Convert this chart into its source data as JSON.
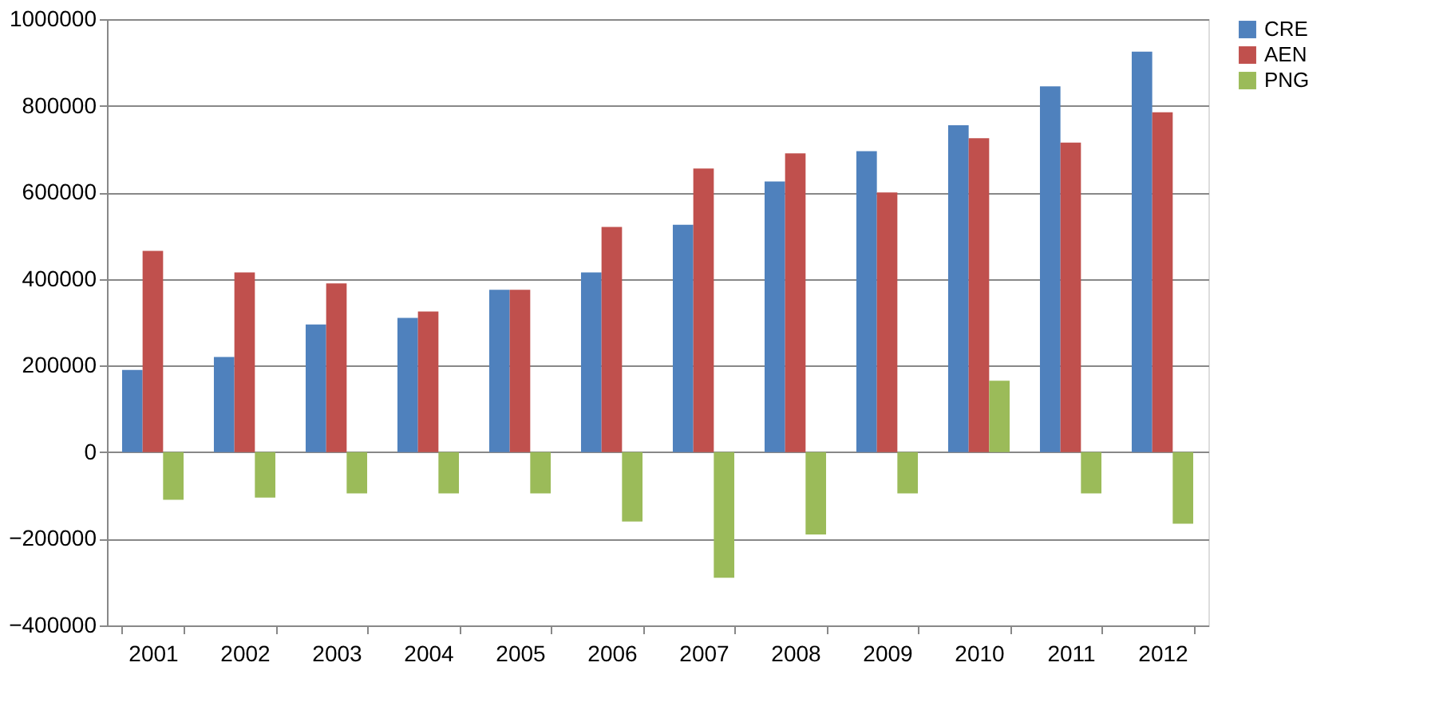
{
  "chart_data": {
    "type": "bar",
    "categories": [
      "2001",
      "2002",
      "2003",
      "2004",
      "2005",
      "2006",
      "2007",
      "2008",
      "2009",
      "2010",
      "2011",
      "2012"
    ],
    "series": [
      {
        "name": "CRE",
        "color": "#4f81bd",
        "values": [
          190000,
          220000,
          295000,
          310000,
          375000,
          415000,
          525000,
          625000,
          695000,
          755000,
          845000,
          925000
        ]
      },
      {
        "name": "AEN",
        "color": "#c0504d",
        "values": [
          465000,
          415000,
          390000,
          325000,
          375000,
          520000,
          655000,
          690000,
          600000,
          725000,
          715000,
          785000
        ]
      },
      {
        "name": "PNG",
        "color": "#9bbb59",
        "values": [
          -110000,
          -105000,
          -95000,
          -95000,
          -95000,
          -160000,
          -290000,
          -190000,
          -95000,
          165000,
          -95000,
          -165000
        ]
      }
    ],
    "ylim": [
      -400000,
      1000000
    ],
    "yticks": [
      -400000,
      -200000,
      0,
      200000,
      400000,
      600000,
      800000,
      1000000
    ],
    "grid": "y",
    "legend": "right"
  }
}
